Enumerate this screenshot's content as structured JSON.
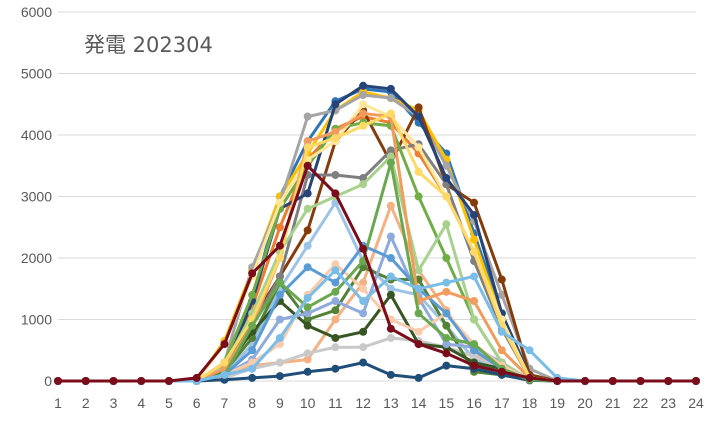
{
  "chart_data": {
    "type": "line",
    "title": "発電 202304",
    "xlabel": "",
    "ylabel": "",
    "x": [
      "1",
      "2",
      "3",
      "4",
      "5",
      "6",
      "7",
      "8",
      "9",
      "10",
      "11",
      "12",
      "13",
      "14",
      "15",
      "16",
      "17",
      "18",
      "19",
      "20",
      "21",
      "22",
      "23",
      "24"
    ],
    "ylim": [
      0,
      6000
    ],
    "yticks": [
      0,
      1000,
      2000,
      3000,
      4000,
      5000,
      6000
    ],
    "grid": true,
    "legend": "none",
    "series": [
      {
        "color": "#2e75b6",
        "values": [
          0,
          0,
          0,
          0,
          0,
          0,
          250,
          1300,
          3000,
          3900,
          4550,
          4750,
          4700,
          4200,
          3700,
          2400,
          1100,
          100,
          0,
          0,
          0,
          0,
          0,
          0
        ]
      },
      {
        "color": "#ffc000",
        "values": [
          0,
          0,
          0,
          0,
          0,
          0,
          650,
          1800,
          3000,
          3700,
          4400,
          4700,
          4600,
          4400,
          3600,
          2300,
          1000,
          50,
          0,
          0,
          0,
          0,
          0,
          0
        ]
      },
      {
        "color": "#a5a5a5",
        "values": [
          0,
          0,
          0,
          0,
          0,
          0,
          300,
          1850,
          2900,
          4300,
          4400,
          4650,
          4600,
          4300,
          3500,
          2600,
          1400,
          200,
          0,
          0,
          0,
          0,
          0,
          0
        ]
      },
      {
        "color": "#ed7d31",
        "values": [
          0,
          0,
          0,
          0,
          0,
          0,
          200,
          1200,
          2500,
          3600,
          4100,
          4300,
          4200,
          3700,
          3000,
          2100,
          900,
          50,
          0,
          0,
          0,
          0,
          0,
          0
        ]
      },
      {
        "color": "#843c0c",
        "values": [
          0,
          0,
          0,
          0,
          0,
          0,
          150,
          1000,
          1700,
          2450,
          3900,
          4400,
          3550,
          4450,
          3200,
          2900,
          1650,
          100,
          0,
          0,
          0,
          0,
          0,
          0
        ]
      },
      {
        "color": "#7f7f7f",
        "values": [
          0,
          0,
          0,
          0,
          0,
          0,
          200,
          900,
          1700,
          3350,
          3350,
          3300,
          3750,
          3850,
          3200,
          1950,
          850,
          50,
          0,
          0,
          0,
          0,
          0,
          0
        ]
      },
      {
        "color": "#264478",
        "values": [
          0,
          0,
          0,
          0,
          0,
          0,
          150,
          1300,
          2800,
          3050,
          4500,
          4800,
          4750,
          4300,
          3300,
          2700,
          1100,
          50,
          0,
          0,
          0,
          0,
          0,
          0
        ]
      },
      {
        "color": "#70ad47",
        "values": [
          0,
          0,
          0,
          0,
          0,
          0,
          300,
          1400,
          2800,
          3500,
          4100,
          4200,
          4150,
          3000,
          2000,
          1000,
          300,
          20,
          0,
          0,
          0,
          0,
          0,
          0
        ]
      },
      {
        "color": "#9dc3e6",
        "values": [
          0,
          0,
          0,
          0,
          0,
          0,
          100,
          600,
          1500,
          2200,
          2900,
          1950,
          1500,
          1400,
          900,
          350,
          200,
          20,
          0,
          0,
          0,
          0,
          0,
          0
        ]
      },
      {
        "color": "#f4b183",
        "values": [
          0,
          0,
          0,
          0,
          0,
          0,
          100,
          250,
          300,
          350,
          1000,
          1600,
          2850,
          1800,
          1150,
          450,
          200,
          20,
          0,
          0,
          0,
          0,
          0,
          0
        ]
      },
      {
        "color": "#c9c9c9",
        "values": [
          0,
          0,
          0,
          0,
          0,
          0,
          50,
          200,
          300,
          450,
          550,
          550,
          700,
          650,
          550,
          400,
          200,
          20,
          0,
          0,
          0,
          0,
          0,
          0
        ]
      },
      {
        "color": "#548235",
        "values": [
          0,
          0,
          0,
          0,
          0,
          0,
          150,
          700,
          1600,
          1000,
          1150,
          1850,
          1650,
          1650,
          900,
          150,
          100,
          20,
          0,
          0,
          0,
          0,
          0,
          0
        ]
      },
      {
        "color": "#375623",
        "values": [
          0,
          0,
          0,
          0,
          0,
          0,
          200,
          800,
          1300,
          900,
          700,
          800,
          1400,
          600,
          550,
          300,
          200,
          20,
          0,
          0,
          0,
          0,
          0,
          0
        ]
      },
      {
        "color": "#8faadc",
        "values": [
          0,
          0,
          0,
          0,
          0,
          0,
          100,
          350,
          1000,
          1100,
          1300,
          1100,
          2350,
          1350,
          600,
          550,
          300,
          20,
          0,
          0,
          0,
          0,
          0,
          0
        ]
      },
      {
        "color": "#a9d18e",
        "values": [
          0,
          0,
          0,
          0,
          0,
          0,
          250,
          1100,
          2100,
          2800,
          3000,
          3200,
          3650,
          1800,
          2550,
          1000,
          300,
          20,
          0,
          0,
          0,
          0,
          0,
          0
        ]
      },
      {
        "color": "#f8cbad",
        "values": [
          0,
          0,
          0,
          0,
          0,
          0,
          100,
          300,
          600,
          1400,
          1900,
          1500,
          1000,
          800,
          1100,
          600,
          250,
          20,
          0,
          0,
          0,
          0,
          0,
          0
        ]
      },
      {
        "color": "#ffe699",
        "values": [
          0,
          0,
          0,
          0,
          0,
          0,
          600,
          1700,
          2900,
          3600,
          3900,
          4500,
          4300,
          3800,
          3000,
          2100,
          1000,
          50,
          0,
          0,
          0,
          0,
          0,
          0
        ]
      },
      {
        "color": "#1f4e79",
        "values": [
          0,
          0,
          0,
          0,
          0,
          0,
          20,
          50,
          80,
          150,
          200,
          300,
          100,
          50,
          250,
          200,
          100,
          10,
          0,
          0,
          0,
          0,
          0,
          0
        ]
      },
      {
        "color": "#5b9bd5",
        "values": [
          0,
          0,
          0,
          0,
          0,
          0,
          100,
          500,
          1400,
          1850,
          1600,
          2200,
          2000,
          1500,
          1100,
          500,
          200,
          20,
          0,
          0,
          0,
          0,
          0,
          0
        ]
      },
      {
        "color": "#f19c5c",
        "values": [
          0,
          0,
          0,
          0,
          0,
          0,
          200,
          900,
          2000,
          3900,
          4050,
          4350,
          4300,
          1300,
          1450,
          1300,
          500,
          50,
          0,
          0,
          0,
          0,
          0,
          0
        ]
      },
      {
        "color": "#ffd966",
        "values": [
          0,
          0,
          0,
          0,
          0,
          0,
          300,
          1000,
          2000,
          3800,
          3950,
          4150,
          4350,
          3400,
          3000,
          2100,
          900,
          50,
          0,
          0,
          0,
          0,
          0,
          0
        ]
      },
      {
        "color": "#6aa84f",
        "values": [
          0,
          0,
          0,
          0,
          0,
          0,
          100,
          900,
          1600,
          1200,
          1450,
          1950,
          3550,
          1100,
          700,
          600,
          200,
          20,
          0,
          0,
          0,
          0,
          0,
          0
        ]
      },
      {
        "color": "#7abde8",
        "values": [
          0,
          0,
          0,
          0,
          0,
          0,
          100,
          200,
          700,
          1350,
          1800,
          1300,
          1700,
          1500,
          1600,
          1700,
          800,
          500,
          50,
          0,
          0,
          0,
          0,
          0
        ]
      },
      {
        "color": "#7b0c1b",
        "values": [
          0,
          0,
          0,
          0,
          0,
          50,
          600,
          1750,
          2200,
          3500,
          3050,
          2150,
          850,
          600,
          450,
          250,
          150,
          50,
          0,
          0,
          0,
          0,
          0,
          0
        ]
      }
    ]
  }
}
